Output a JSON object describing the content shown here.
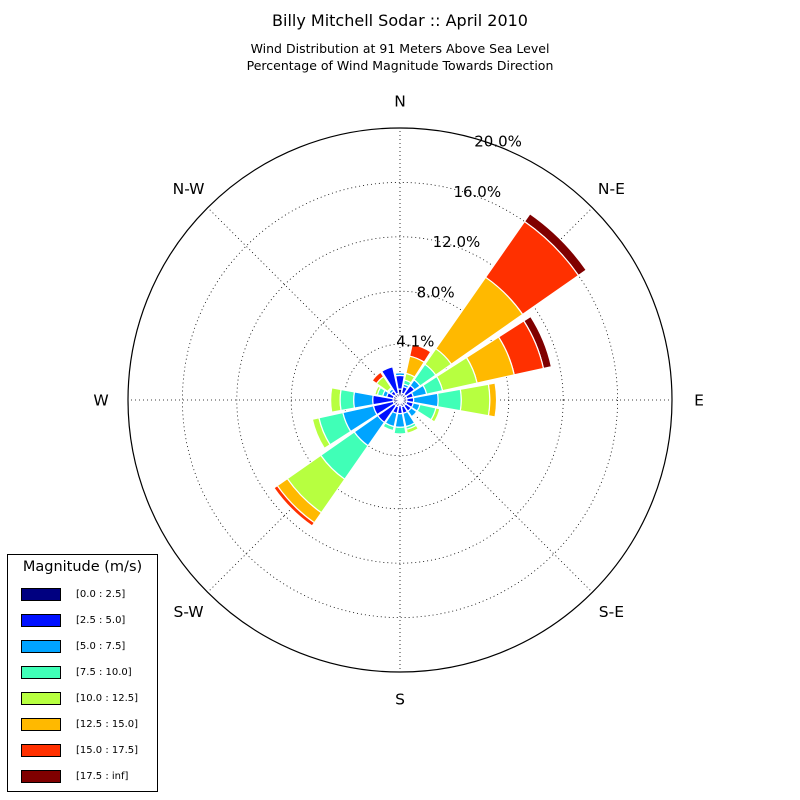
{
  "chart_data": {
    "type": "windrose",
    "title": "Billy Mitchell Sodar :: April 2010",
    "subtitle_lines": [
      "Wind Distribution at 91 Meters Above Sea Level",
      "Percentage of Wind Magnitude Towards Direction"
    ],
    "radial_ticks": [
      "4.1%",
      "8.0%",
      "12.0%",
      "16.0%",
      "20.0%"
    ],
    "radial_tick_values": [
      4.1,
      8.0,
      12.0,
      16.0,
      20.0
    ],
    "rmax": 20.0,
    "direction_labels": [
      "N",
      "N-E",
      "E",
      "S-E",
      "S",
      "S-W",
      "W",
      "N-W"
    ],
    "legend_title": "Magnitude (m/s)",
    "bins": [
      {
        "label": "[0.0 : 2.5]",
        "color": "#000080"
      },
      {
        "label": "[2.5 : 5.0]",
        "color": "#0010ff"
      },
      {
        "label": "[5.0 : 7.5]",
        "color": "#00a4ff"
      },
      {
        "label": "[7.5 : 10.0]",
        "color": "#40ffb7"
      },
      {
        "label": "[10.0 : 12.5]",
        "color": "#b7ff40"
      },
      {
        "label": "[12.5 : 15.0]",
        "color": "#ffb900"
      },
      {
        "label": "[15.0 : 17.5]",
        "color": "#ff3000"
      },
      {
        "label": "[17.5 : inf]",
        "color": "#800000"
      }
    ],
    "directions_deg": [
      0,
      22.5,
      45,
      67.5,
      90,
      112.5,
      135,
      157.5,
      180,
      202.5,
      225,
      247.5,
      270,
      292.5,
      315,
      337.5
    ],
    "stacked_cumulative_percent": [
      [
        0.8,
        1.8,
        2.0,
        2.0,
        2.0,
        2.0,
        2.0,
        2.0
      ],
      [
        0.5,
        1.0,
        1.2,
        1.5,
        2.0,
        3.3,
        4.2,
        4.2
      ],
      [
        0.5,
        1.3,
        1.8,
        3.2,
        4.6,
        11.0,
        16.0,
        16.7
      ],
      [
        0.5,
        1.0,
        2.0,
        3.2,
        5.8,
        8.6,
        10.8,
        11.4
      ],
      [
        0.5,
        1.0,
        2.8,
        4.5,
        6.6,
        7.1,
        7.1,
        7.1
      ],
      [
        0.5,
        1.0,
        1.5,
        2.7,
        3.0,
        3.0,
        3.0,
        3.0
      ],
      [
        0.5,
        1.0,
        1.5,
        1.5,
        1.5,
        1.5,
        1.5,
        1.5
      ],
      [
        0.5,
        1.0,
        2.0,
        2.2,
        2.5,
        2.5,
        2.5,
        2.5
      ],
      [
        0.4,
        1.0,
        2.0,
        2.5,
        2.5,
        2.5,
        2.5,
        2.5
      ],
      [
        0.5,
        1.0,
        2.0,
        2.3,
        2.3,
        2.3,
        2.3,
        2.3
      ],
      [
        0.5,
        2.0,
        4.1,
        7.1,
        10.1,
        11.0,
        11.3,
        11.3
      ],
      [
        0.5,
        2.0,
        4.3,
        6.1,
        6.6,
        6.6,
        6.6,
        6.6
      ],
      [
        0.5,
        2.0,
        3.4,
        4.4,
        5.1,
        5.1,
        5.1,
        5.1
      ],
      [
        0.5,
        1.0,
        1.3,
        1.7,
        1.9,
        1.9,
        1.9,
        1.9
      ],
      [
        0.5,
        0.8,
        1.0,
        1.1,
        2.1,
        2.1,
        2.5,
        2.5
      ],
      [
        0.5,
        2.5,
        2.5,
        2.5,
        2.5,
        2.5,
        2.5,
        2.5
      ]
    ]
  }
}
